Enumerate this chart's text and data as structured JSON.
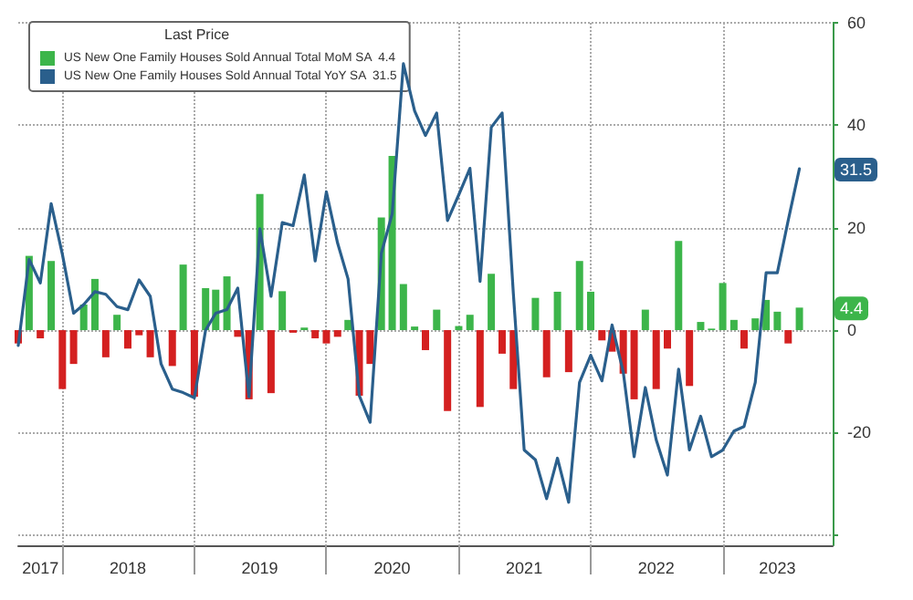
{
  "chart_data": {
    "type": "bar",
    "legend_title": "Last Price",
    "legend": "top left",
    "grid": true,
    "x": [
      "2017-09",
      "2017-10",
      "2017-11",
      "2017-12",
      "2018-01",
      "2018-02",
      "2018-03",
      "2018-04",
      "2018-05",
      "2018-06",
      "2018-07",
      "2018-08",
      "2018-09",
      "2018-10",
      "2018-11",
      "2018-12",
      "2019-01",
      "2019-02",
      "2019-03",
      "2019-04",
      "2019-05",
      "2019-06",
      "2019-07",
      "2019-08",
      "2019-09",
      "2019-10",
      "2019-11",
      "2019-12",
      "2020-01",
      "2020-02",
      "2020-03",
      "2020-04",
      "2020-05",
      "2020-06",
      "2020-07",
      "2020-08",
      "2020-09",
      "2020-10",
      "2020-11",
      "2020-12",
      "2021-01",
      "2021-02",
      "2021-03",
      "2021-04",
      "2021-05",
      "2021-06",
      "2021-07",
      "2021-08",
      "2021-09",
      "2021-10",
      "2021-11",
      "2021-12",
      "2022-01",
      "2022-02",
      "2022-03",
      "2022-04",
      "2022-05",
      "2022-06",
      "2022-07",
      "2022-08",
      "2022-09",
      "2022-10",
      "2022-11",
      "2022-12",
      "2023-01",
      "2023-02",
      "2023-03",
      "2023-04",
      "2023-05",
      "2023-06",
      "2023-07",
      "2023-08"
    ],
    "xlim": [
      "2017-09",
      "2023-11"
    ],
    "xticks": [
      {
        "value": "2018-01",
        "label": null
      },
      {
        "value": "2019-01",
        "label": null
      },
      {
        "value": "2020-01",
        "label": null
      },
      {
        "value": "2021-01",
        "label": null
      },
      {
        "value": "2022-01",
        "label": null
      },
      {
        "value": "2023-01",
        "label": null
      },
      {
        "value": "2017-11",
        "label": "2017"
      },
      {
        "value": "2018-07",
        "label": "2018"
      },
      {
        "value": "2019-07",
        "label": "2019"
      },
      {
        "value": "2020-07",
        "label": "2020"
      },
      {
        "value": "2021-07",
        "label": "2021"
      },
      {
        "value": "2022-07",
        "label": "2022"
      },
      {
        "value": "2023-06",
        "label": "2023"
      }
    ],
    "ylim": [
      -42,
      60
    ],
    "yticks": [
      {
        "value": -40,
        "label": null
      },
      -20,
      0,
      20,
      40,
      60
    ],
    "series": [
      {
        "name": "US New One Family Houses Sold Annual Total MoM SA  4.4",
        "color": "#3cb54a",
        "values": [
          -2.6,
          14.5,
          -1.6,
          13.5,
          -11.5,
          -6.6,
          5,
          10,
          -5.3,
          3,
          -3.6,
          -1,
          -5.3,
          0,
          -7,
          12.8,
          -13,
          8.2,
          7.9,
          10.5,
          -1.3,
          -13.5,
          26.6,
          -12.3,
          7.6,
          -0.5,
          0.5,
          -1.6,
          -2.6,
          -1.3,
          2,
          -12.8,
          -6.6,
          22,
          34,
          9,
          0.7,
          -3.9,
          4,
          -15.8,
          0.8,
          3,
          -15,
          11,
          -4.6,
          -11.5,
          0,
          6.3,
          -9.2,
          7.5,
          -8.2,
          13.5,
          7.5,
          -2,
          -4.2,
          -8.5,
          -13.5,
          4,
          -11.5,
          -3.6,
          17.4,
          -10.9,
          1.6,
          0.3,
          9.2,
          2,
          -3.6,
          2.3,
          5.9,
          3.6,
          -2.6,
          4.4
        ],
        "colors": [
          "#d42020",
          "#3cb54a",
          "#d42020",
          "#3cb54a",
          "#d42020",
          "#d42020",
          "#3cb54a",
          "#3cb54a",
          "#d42020",
          "#3cb54a",
          "#d42020",
          "#d42020",
          "#d42020",
          "#3cb54a",
          "#d42020",
          "#3cb54a",
          "#d42020",
          "#3cb54a",
          "#3cb54a",
          "#3cb54a",
          "#d42020",
          "#d42020",
          "#3cb54a",
          "#d42020",
          "#3cb54a",
          "#d42020",
          "#3cb54a",
          "#d42020",
          "#d42020",
          "#d42020",
          "#3cb54a",
          "#d42020",
          "#d42020",
          "#3cb54a",
          "#3cb54a",
          "#3cb54a",
          "#3cb54a",
          "#d42020",
          "#3cb54a",
          "#d42020",
          "#3cb54a",
          "#3cb54a",
          "#d42020",
          "#3cb54a",
          "#d42020",
          "#d42020",
          "#3cb54a",
          "#3cb54a",
          "#d42020",
          "#3cb54a",
          "#d42020",
          "#3cb54a",
          "#3cb54a",
          "#d42020",
          "#d42020",
          "#d42020",
          "#d42020",
          "#3cb54a",
          "#d42020",
          "#d42020",
          "#3cb54a",
          "#d42020",
          "#3cb54a",
          "#3cb54a",
          "#3cb54a",
          "#3cb54a",
          "#d42020",
          "#3cb54a",
          "#3cb54a",
          "#3cb54a",
          "#d42020",
          "#3cb54a"
        ]
      },
      {
        "name": "US New One Family Houses Sold Annual Total YoY SA  31.5",
        "type": "line",
        "color": "#2a5f8c",
        "values": [
          -3,
          13.8,
          9.2,
          24.7,
          14.8,
          3.3,
          5,
          7.5,
          7,
          4.6,
          4,
          9.8,
          6.6,
          -6.6,
          -11.5,
          -12.2,
          -13.2,
          0,
          3.3,
          4,
          8.2,
          -13,
          19.8,
          6.6,
          21,
          20.4,
          30.3,
          13.5,
          27,
          17,
          10,
          -12.8,
          -18,
          15,
          22.7,
          52,
          42.8,
          38,
          42.4,
          21.4,
          26.4,
          31.6,
          9.5,
          39.6,
          42.4,
          7.2,
          -23.4,
          -25.3,
          -32.9,
          -25,
          -33.6,
          -10.2,
          -4.9,
          -9.9,
          1,
          -8.2,
          -24.7,
          -11.2,
          -21.4,
          -28.3,
          -7.6,
          -23.4,
          -16.8,
          -24.7,
          -23.4,
          -19.7,
          -18.8,
          -10.2,
          11.2,
          11.2,
          21.4,
          31.5
        ]
      }
    ],
    "marker": "none",
    "line_style": "solid",
    "annotations": [
      "4.4",
      "31.5"
    ]
  }
}
